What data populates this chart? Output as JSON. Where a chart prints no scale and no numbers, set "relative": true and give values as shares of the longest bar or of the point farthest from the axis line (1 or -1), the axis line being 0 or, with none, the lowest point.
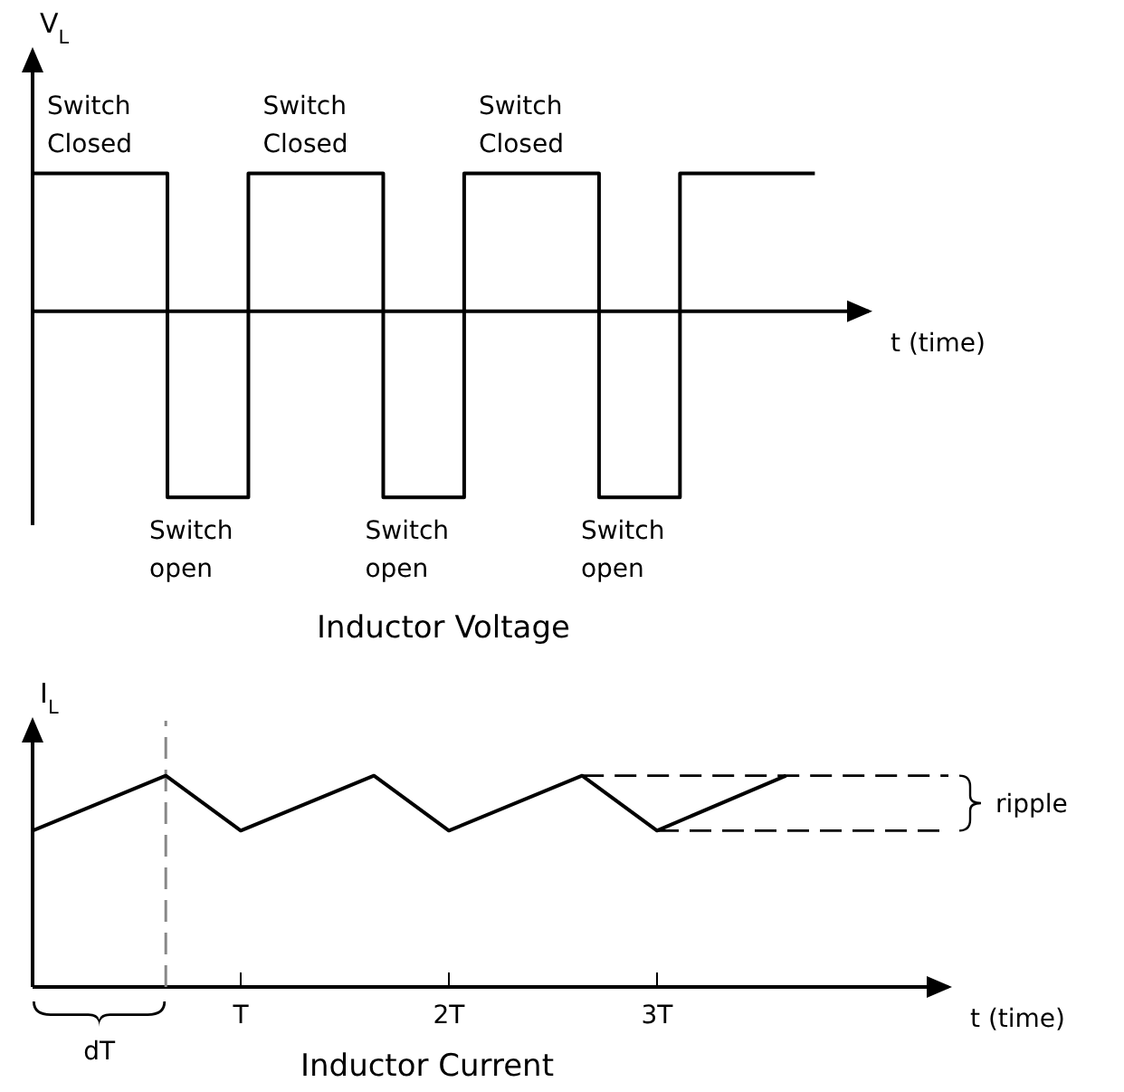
{
  "chart_data": [
    {
      "type": "step",
      "title": "Inductor Voltage",
      "ylabel": "V$_{L}$",
      "xlabel": "t (time)",
      "relative": true,
      "tick_labels": false,
      "color": "#000000",
      "categories": [
        null,
        null,
        null,
        null,
        null,
        null,
        null,
        null,
        null,
        null,
        null,
        null,
        null,
        null,
        null,
        null,
        null,
        null,
        null,
        null,
        null,
        null,
        null,
        null,
        null,
        null,
        null,
        null,
        null,
        null,
        null,
        null
      ],
      "values": [
        0.74,
        0.74,
        0.74,
        0.74,
        0.74,
        -1,
        -1,
        -1,
        0.74,
        0.74,
        0.74,
        0.74,
        0.74,
        -1,
        -1,
        -1,
        0.74,
        0.74,
        0.74,
        0.74,
        0.74,
        -1,
        -1,
        -1,
        0.74,
        0.74,
        0.74,
        0.74,
        0.74,
        0.74,
        null,
        null
      ],
      "annotations": [
        {
          "text": "Switch Closed",
          "y": 0.74
        },
        {
          "text": "Switch Closed",
          "y": 0.74
        },
        {
          "text": "Switch Closed",
          "y": 0.74
        },
        {
          "text": "Switch open",
          "y": -1
        },
        {
          "text": "Switch open",
          "y": -1
        },
        {
          "text": "Switch open",
          "y": -1
        }
      ]
    },
    {
      "type": "line",
      "title": "Inductor Current",
      "ylabel": "I$_{L}$",
      "xlabel": "t (time)",
      "relative": true,
      "tick_labels": "x",
      "series": [
        {
          "color": "#000000",
          "x": [
            0,
            0.64,
            1,
            1.64,
            2,
            2.64,
            3,
            3.62
          ],
          "values": [
            0.74,
            1,
            0.74,
            1,
            0.74,
            1,
            0.74,
            1
          ]
        },
        {
          "color": "#000000",
          "line_style": "dashed",
          "x": [
            2.64,
            4.4
          ],
          "values": [
            1,
            1
          ]
        },
        {
          "color": "#000000",
          "line_style": "dashed",
          "x": [
            3,
            4.4
          ],
          "values": [
            0.74,
            0.74
          ]
        }
      ],
      "xlim": [
        0,
        4.4
      ],
      "xticks": [
        {
          "value": 1,
          "label": "T"
        },
        {
          "value": 2,
          "label": "2T"
        },
        {
          "value": 3,
          "label": "3T"
        }
      ],
      "ref_lines": [
        {
          "axis": "x",
          "value": 0.64,
          "label": "dT",
          "line_style": "dashed",
          "color": "#888888"
        }
      ],
      "annotations": [
        "ripple"
      ]
    }
  ]
}
